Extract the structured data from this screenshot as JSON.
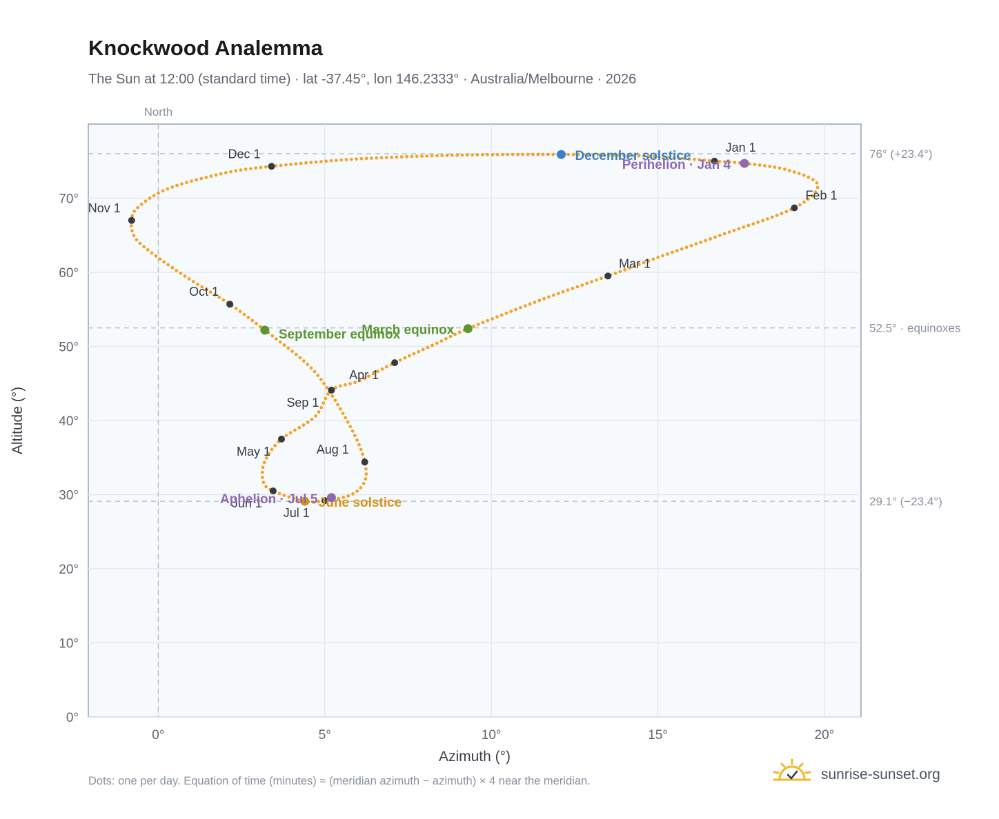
{
  "header": {
    "title": "Knockwood Analemma",
    "subtitle": "The Sun at 12:00 (standard time) · lat -37.45°, lon 146.2333° · Australia/Melbourne · 2026"
  },
  "footer": {
    "note": "Dots: one per day. Equation of time (minutes) ≈ (meridian azimuth − azimuth) × 4 near the meridian.",
    "brand": "sunrise-sunset.org"
  },
  "colors": {
    "track": "#f2a32a",
    "month_marker": "#343a40",
    "december_solstice": "#3b7fc4",
    "june_solstice": "#d4921a",
    "equinox": "#5b9632",
    "apsis": "#8f68b5",
    "reference_line": "#b8c0c8",
    "plot_background": "#f7fafd"
  },
  "chart_data": {
    "type": "scatter",
    "xlabel": "Azimuth (°)",
    "ylabel": "Altitude (°)",
    "xlim": [
      -2.1,
      21.1
    ],
    "ylim": [
      0,
      80
    ],
    "x_ticks": [
      0,
      5,
      10,
      15,
      20
    ],
    "x_tick_labels": [
      "0°",
      "5°",
      "10°",
      "15°",
      "20°"
    ],
    "y_ticks": [
      0,
      10,
      20,
      30,
      40,
      50,
      60,
      70
    ],
    "y_tick_labels": [
      "0°",
      "10°",
      "20°",
      "30°",
      "40°",
      "50°",
      "60°",
      "70°"
    ],
    "grid": true,
    "north_line": {
      "x": 0,
      "label": "North"
    },
    "reference_lines": [
      {
        "y": 76.0,
        "label": "76° (+23.4°)"
      },
      {
        "y": 52.5,
        "label": "52.5° · equinoxes"
      },
      {
        "y": 29.1,
        "label": "29.1° (−23.4°)"
      }
    ],
    "track_points": [
      [
        16.7,
        75.0
      ],
      [
        17.6,
        74.7
      ],
      [
        18.9,
        73.8
      ],
      [
        19.8,
        71.8
      ],
      [
        19.1,
        68.7
      ],
      [
        17.0,
        65.2
      ],
      [
        15.0,
        62.0
      ],
      [
        13.5,
        59.5
      ],
      [
        11.5,
        56.3
      ],
      [
        9.3,
        52.4
      ],
      [
        8.3,
        50.3
      ],
      [
        7.1,
        47.8
      ],
      [
        6.0,
        45.3
      ],
      [
        5.2,
        44.1
      ],
      [
        4.7,
        40.5
      ],
      [
        3.7,
        37.5
      ],
      [
        3.2,
        34.5
      ],
      [
        3.15,
        31.8
      ],
      [
        3.45,
        30.5
      ],
      [
        4.4,
        29.1
      ],
      [
        5.0,
        29.2
      ],
      [
        5.8,
        30.0
      ],
      [
        6.2,
        31.8
      ],
      [
        6.2,
        34.4
      ],
      [
        5.9,
        38.0
      ],
      [
        5.2,
        43.5
      ],
      [
        4.5,
        47.5
      ],
      [
        3.2,
        52.2
      ],
      [
        2.15,
        55.7
      ],
      [
        1.0,
        58.9
      ],
      [
        -0.1,
        62.3
      ],
      [
        -0.7,
        64.7
      ],
      [
        -0.8,
        67.0
      ],
      [
        -0.6,
        68.8
      ],
      [
        0.3,
        71.3
      ],
      [
        2.0,
        73.4
      ],
      [
        3.4,
        74.3
      ],
      [
        6.0,
        75.3
      ],
      [
        9.0,
        75.8
      ],
      [
        12.1,
        75.9
      ],
      [
        14.5,
        75.7
      ],
      [
        16.2,
        75.2
      ],
      [
        16.7,
        75.0
      ]
    ],
    "month_markers": [
      {
        "label": "Jan 1",
        "x": 16.7,
        "y": 75.0
      },
      {
        "label": "Feb 1",
        "x": 19.1,
        "y": 68.7
      },
      {
        "label": "Mar 1",
        "x": 13.5,
        "y": 59.5
      },
      {
        "label": "Apr 1",
        "x": 7.1,
        "y": 47.8
      },
      {
        "label": "May 1",
        "x": 3.7,
        "y": 37.5
      },
      {
        "label": "Jun 1",
        "x": 3.45,
        "y": 30.5
      },
      {
        "label": "Jul 1",
        "x": 5.0,
        "y": 29.2
      },
      {
        "label": "Aug 1",
        "x": 6.2,
        "y": 34.4
      },
      {
        "label": "Sep 1",
        "x": 5.2,
        "y": 44.1
      },
      {
        "label": "Oct 1",
        "x": 2.15,
        "y": 55.7
      },
      {
        "label": "Nov 1",
        "x": -0.8,
        "y": 67.0
      },
      {
        "label": "Dec 1",
        "x": 3.4,
        "y": 74.3
      }
    ],
    "events": [
      {
        "label": "December solstice",
        "x": 12.1,
        "y": 75.9,
        "color": "#3b7fc4"
      },
      {
        "label": "Perihelion · Jan 4",
        "x": 17.6,
        "y": 74.7,
        "color": "#8f68b5"
      },
      {
        "label": "March equinox",
        "x": 9.3,
        "y": 52.4,
        "color": "#5b9632"
      },
      {
        "label": "September equinox",
        "x": 3.2,
        "y": 52.2,
        "color": "#5b9632"
      },
      {
        "label": "June solstice",
        "x": 4.4,
        "y": 29.1,
        "color": "#d4921a"
      },
      {
        "label": "Aphelion · Jul 5",
        "x": 5.2,
        "y": 29.6,
        "color": "#8f68b5"
      }
    ]
  }
}
